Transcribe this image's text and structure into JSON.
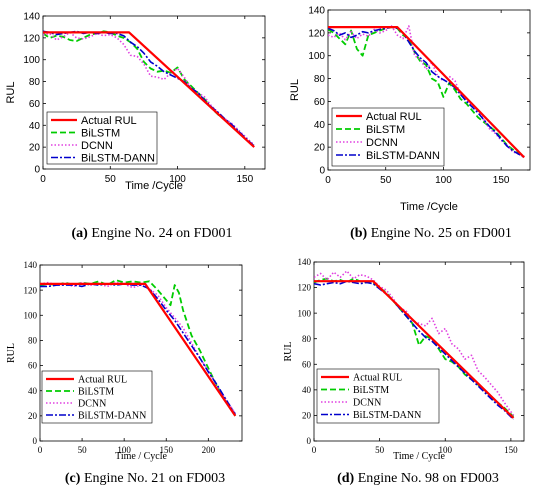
{
  "chart_data": [
    {
      "type": "line",
      "panel_id": "a",
      "caption_label": "(a)",
      "caption_text": "Engine No. 24 on FD001",
      "xlabel": "Time /Cycle",
      "ylabel": "RUL",
      "xlim": [
        0,
        165
      ],
      "ylim": [
        0,
        140
      ],
      "xticks": [
        0,
        50,
        100,
        150
      ],
      "yticks": [
        0,
        20,
        40,
        60,
        80,
        100,
        120,
        140
      ],
      "legend_position": "bottom-left",
      "series": [
        {
          "name": "Actual RUL",
          "color": "#ff0000",
          "dash": "solid",
          "width": 2.2,
          "x": [
            0,
            64,
            157
          ],
          "y": [
            125,
            125,
            20
          ]
        },
        {
          "name": "BiLSTM",
          "color": "#00cc00",
          "dash": "6 3",
          "width": 1.8,
          "x": [
            0,
            5,
            10,
            15,
            20,
            25,
            30,
            35,
            40,
            45,
            50,
            55,
            60,
            65,
            70,
            75,
            80,
            85,
            90,
            95,
            100,
            105,
            110,
            115,
            120,
            125,
            130,
            135,
            140,
            145,
            150,
            157
          ],
          "y": [
            124,
            120,
            122,
            121,
            118,
            117,
            120,
            123,
            124,
            126,
            125,
            122,
            120,
            116,
            110,
            98,
            92,
            89,
            90,
            88,
            93,
            82,
            76,
            70,
            64,
            56,
            50,
            45,
            40,
            34,
            28,
            21
          ]
        },
        {
          "name": "DCNN",
          "color": "#e040e0",
          "dash": "1.5 2",
          "width": 1.6,
          "x": [
            0,
            5,
            10,
            15,
            20,
            25,
            30,
            35,
            40,
            45,
            50,
            55,
            60,
            65,
            70,
            75,
            80,
            85,
            90,
            95,
            100,
            105,
            110,
            115,
            120,
            125,
            130,
            135,
            140,
            145,
            150,
            157
          ],
          "y": [
            123,
            124,
            118,
            121,
            125,
            120,
            119,
            121,
            124,
            122,
            123,
            120,
            114,
            104,
            103,
            96,
            85,
            84,
            82,
            88,
            92,
            84,
            74,
            70,
            66,
            58,
            52,
            46,
            42,
            36,
            30,
            22
          ]
        },
        {
          "name": "BiLSTM-DANN",
          "color": "#0000cc",
          "dash": "7 2 2 2",
          "width": 1.6,
          "x": [
            0,
            5,
            10,
            15,
            20,
            25,
            30,
            35,
            40,
            45,
            50,
            55,
            60,
            65,
            70,
            75,
            80,
            85,
            90,
            95,
            100,
            105,
            110,
            115,
            120,
            125,
            130,
            135,
            140,
            145,
            150,
            157
          ],
          "y": [
            126,
            125,
            123,
            124,
            125,
            126,
            124,
            125,
            124,
            125,
            124,
            124,
            122,
            116,
            112,
            106,
            98,
            94,
            89,
            86,
            83,
            80,
            74,
            70,
            63,
            57,
            52,
            46,
            41,
            35,
            29,
            21
          ]
        }
      ]
    },
    {
      "type": "line",
      "panel_id": "b",
      "caption_label": "(b)",
      "caption_text": "Engine No. 25 on FD001",
      "xlabel": "Time /Cycle",
      "ylabel": "RUL",
      "xlim": [
        0,
        175
      ],
      "ylim": [
        0,
        140
      ],
      "xticks": [
        0,
        50,
        100,
        150
      ],
      "yticks": [
        0,
        20,
        40,
        60,
        80,
        100,
        120,
        140
      ],
      "legend_position": "bottom-left",
      "series": [
        {
          "name": "Actual RUL",
          "color": "#ff0000",
          "dash": "solid",
          "width": 2.2,
          "x": [
            0,
            60,
            170
          ],
          "y": [
            125,
            125,
            11
          ]
        },
        {
          "name": "BiLSTM",
          "color": "#00cc00",
          "dash": "6 3",
          "width": 1.8,
          "x": [
            0,
            5,
            10,
            15,
            20,
            25,
            30,
            35,
            40,
            45,
            50,
            55,
            60,
            65,
            70,
            75,
            80,
            85,
            90,
            95,
            100,
            105,
            110,
            115,
            120,
            125,
            130,
            135,
            140,
            145,
            150,
            155,
            160,
            170
          ],
          "y": [
            123,
            120,
            115,
            110,
            122,
            106,
            100,
            118,
            120,
            122,
            124,
            125,
            124,
            118,
            115,
            103,
            95,
            92,
            80,
            77,
            64,
            76,
            70,
            62,
            58,
            52,
            46,
            42,
            38,
            34,
            28,
            22,
            18,
            12
          ]
        },
        {
          "name": "DCNN",
          "color": "#e040e0",
          "dash": "1.5 2",
          "width": 1.6,
          "x": [
            0,
            5,
            10,
            15,
            20,
            25,
            30,
            35,
            40,
            45,
            50,
            55,
            60,
            65,
            70,
            75,
            80,
            85,
            90,
            95,
            100,
            105,
            110,
            115,
            120,
            125,
            130,
            135,
            140,
            145,
            150,
            155,
            160,
            170
          ],
          "y": [
            118,
            116,
            120,
            114,
            121,
            115,
            119,
            117,
            123,
            120,
            122,
            126,
            118,
            115,
            126,
            100,
            97,
            88,
            94,
            82,
            78,
            82,
            78,
            66,
            62,
            56,
            52,
            44,
            36,
            32,
            26,
            22,
            16,
            12
          ]
        },
        {
          "name": "BiLSTM-DANN",
          "color": "#0000cc",
          "dash": "7 2 2 2",
          "width": 1.6,
          "x": [
            0,
            5,
            10,
            15,
            20,
            25,
            30,
            35,
            40,
            45,
            50,
            55,
            60,
            65,
            70,
            75,
            80,
            85,
            90,
            95,
            100,
            105,
            110,
            115,
            120,
            125,
            130,
            135,
            140,
            145,
            150,
            155,
            160,
            170
          ],
          "y": [
            124,
            122,
            118,
            120,
            116,
            118,
            121,
            120,
            122,
            123,
            124,
            125,
            124,
            120,
            112,
            104,
            98,
            94,
            86,
            82,
            79,
            76,
            72,
            66,
            60,
            55,
            50,
            44,
            38,
            33,
            27,
            21,
            17,
            11
          ]
        }
      ]
    },
    {
      "type": "line",
      "panel_id": "c",
      "caption_label": "(c)",
      "caption_text": "Engine No. 21 on FD003",
      "xlabel": "Time / Cycle",
      "ylabel": "RUL",
      "xlim": [
        0,
        240
      ],
      "ylim": [
        0,
        140
      ],
      "xticks": [
        0,
        50,
        100,
        150,
        200
      ],
      "yticks": [
        0,
        20,
        40,
        60,
        80,
        100,
        120,
        140
      ],
      "legend_position": "bottom-left",
      "series": [
        {
          "name": "Actual RUL",
          "color": "#ff0000",
          "dash": "solid",
          "width": 2.2,
          "x": [
            0,
            125,
            232
          ],
          "y": [
            125,
            125,
            20
          ]
        },
        {
          "name": "BiLSTM",
          "color": "#00cc00",
          "dash": "6 3",
          "width": 1.8,
          "x": [
            0,
            10,
            20,
            30,
            40,
            50,
            60,
            70,
            80,
            90,
            100,
            110,
            120,
            130,
            140,
            150,
            155,
            160,
            165,
            170,
            180,
            190,
            200,
            210,
            220,
            232
          ],
          "y": [
            124,
            125,
            124,
            126,
            124,
            126,
            125,
            127,
            124,
            128,
            126,
            127,
            126,
            127,
            120,
            112,
            108,
            124,
            118,
            104,
            84,
            72,
            58,
            44,
            32,
            20
          ]
        },
        {
          "name": "DCNN",
          "color": "#e040e0",
          "dash": "1.5 2",
          "width": 1.6,
          "x": [
            0,
            10,
            20,
            30,
            40,
            50,
            60,
            70,
            80,
            90,
            100,
            110,
            120,
            130,
            140,
            150,
            160,
            170,
            180,
            190,
            200,
            210,
            220,
            232
          ],
          "y": [
            125,
            126,
            124,
            125,
            123,
            126,
            124,
            125,
            123,
            126,
            125,
            122,
            124,
            121,
            116,
            106,
            98,
            90,
            78,
            66,
            56,
            44,
            34,
            22
          ]
        },
        {
          "name": "BiLSTM-DANN",
          "color": "#0000cc",
          "dash": "7 2 2 2",
          "width": 1.6,
          "x": [
            0,
            10,
            20,
            30,
            40,
            50,
            60,
            70,
            80,
            90,
            100,
            110,
            120,
            130,
            140,
            150,
            160,
            170,
            180,
            190,
            200,
            210,
            220,
            232
          ],
          "y": [
            123,
            123,
            124,
            124,
            124,
            123,
            125,
            124,
            125,
            124,
            125,
            124,
            124,
            121,
            113,
            104,
            96,
            86,
            76,
            66,
            55,
            45,
            34,
            21
          ]
        }
      ]
    },
    {
      "type": "line",
      "panel_id": "d",
      "caption_label": "(d)",
      "caption_text": "Engine No. 98 on FD003",
      "xlabel": "Time / Cycle",
      "ylabel": "RUL",
      "xlim": [
        0,
        160
      ],
      "ylim": [
        0,
        140
      ],
      "xticks": [
        0,
        50,
        100,
        150
      ],
      "yticks": [
        0,
        20,
        40,
        60,
        80,
        100,
        120,
        140
      ],
      "legend_position": "bottom-left",
      "series": [
        {
          "name": "Actual RUL",
          "color": "#ff0000",
          "dash": "solid",
          "width": 2.2,
          "x": [
            0,
            45,
            152
          ],
          "y": [
            125,
            125,
            18
          ]
        },
        {
          "name": "BiLSTM",
          "color": "#00cc00",
          "dash": "6 3",
          "width": 1.8,
          "x": [
            0,
            5,
            10,
            15,
            20,
            25,
            30,
            35,
            40,
            45,
            50,
            55,
            60,
            65,
            70,
            75,
            80,
            85,
            90,
            95,
            100,
            105,
            110,
            115,
            120,
            125,
            130,
            135,
            140,
            145,
            152
          ],
          "y": [
            124,
            126,
            127,
            125,
            126,
            124,
            127,
            125,
            124,
            124,
            120,
            116,
            110,
            104,
            98,
            92,
            75,
            82,
            80,
            72,
            64,
            62,
            58,
            52,
            48,
            44,
            40,
            34,
            30,
            26,
            19
          ]
        },
        {
          "name": "DCNN",
          "color": "#e040e0",
          "dash": "1.5 2",
          "width": 1.6,
          "x": [
            0,
            5,
            10,
            15,
            20,
            25,
            30,
            35,
            40,
            45,
            50,
            55,
            60,
            65,
            70,
            75,
            80,
            85,
            90,
            95,
            100,
            105,
            110,
            115,
            120,
            125,
            130,
            135,
            140,
            145,
            152
          ],
          "y": [
            128,
            131,
            126,
            132,
            128,
            133,
            127,
            130,
            129,
            126,
            121,
            118,
            112,
            104,
            102,
            94,
            92,
            90,
            96,
            84,
            88,
            76,
            72,
            64,
            67,
            55,
            50,
            44,
            38,
            30,
            20
          ]
        },
        {
          "name": "BiLSTM-DANN",
          "color": "#0000cc",
          "dash": "7 2 2 2",
          "width": 1.6,
          "x": [
            0,
            5,
            10,
            15,
            20,
            25,
            30,
            35,
            40,
            45,
            50,
            55,
            60,
            65,
            70,
            75,
            80,
            85,
            90,
            95,
            100,
            105,
            110,
            115,
            120,
            125,
            130,
            135,
            140,
            145,
            152
          ],
          "y": [
            123,
            122,
            123,
            124,
            123,
            125,
            124,
            123,
            124,
            123,
            119,
            115,
            110,
            104,
            98,
            92,
            86,
            81,
            78,
            73,
            68,
            63,
            58,
            53,
            48,
            43,
            38,
            33,
            28,
            24,
            17
          ]
        }
      ]
    }
  ]
}
